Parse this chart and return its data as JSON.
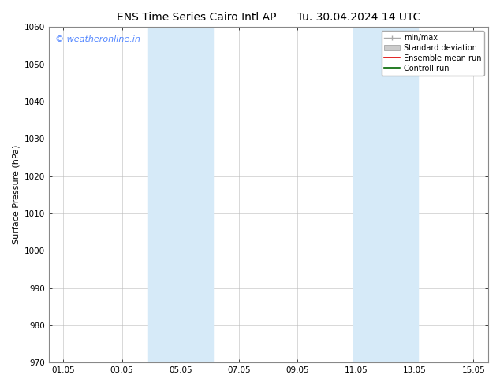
{
  "title_left": "ENS Time Series Cairo Intl AP",
  "title_right": "Tu. 30.04.2024 14 UTC",
  "ylabel": "Surface Pressure (hPa)",
  "ylim": [
    970,
    1060
  ],
  "yticks": [
    970,
    980,
    990,
    1000,
    1010,
    1020,
    1030,
    1040,
    1050,
    1060
  ],
  "xtick_labels": [
    "01.05",
    "03.05",
    "05.05",
    "07.05",
    "09.05",
    "11.05",
    "13.05",
    "15.05"
  ],
  "xtick_positions": [
    1,
    3,
    5,
    7,
    9,
    11,
    13,
    15
  ],
  "xlim": [
    0.5,
    15.5
  ],
  "shaded_bands": [
    {
      "x_start": 3.9,
      "x_end": 6.1
    },
    {
      "x_start": 10.9,
      "x_end": 13.1
    }
  ],
  "shaded_color": "#d6eaf8",
  "watermark_text": "© weatheronline.in",
  "watermark_color": "#5588ff",
  "legend_entries": [
    {
      "label": "min/max",
      "type": "minmax"
    },
    {
      "label": "Standard deviation",
      "type": "stddev"
    },
    {
      "label": "Ensemble mean run",
      "type": "line",
      "color": "#dd0000"
    },
    {
      "label": "Controll run",
      "type": "line",
      "color": "#006600"
    }
  ],
  "bg_color": "#ffffff",
  "grid_color": "#bbbbbb",
  "spine_color": "#888888",
  "title_fontsize": 10,
  "axis_label_fontsize": 8,
  "tick_fontsize": 7.5,
  "watermark_fontsize": 8,
  "legend_fontsize": 7
}
